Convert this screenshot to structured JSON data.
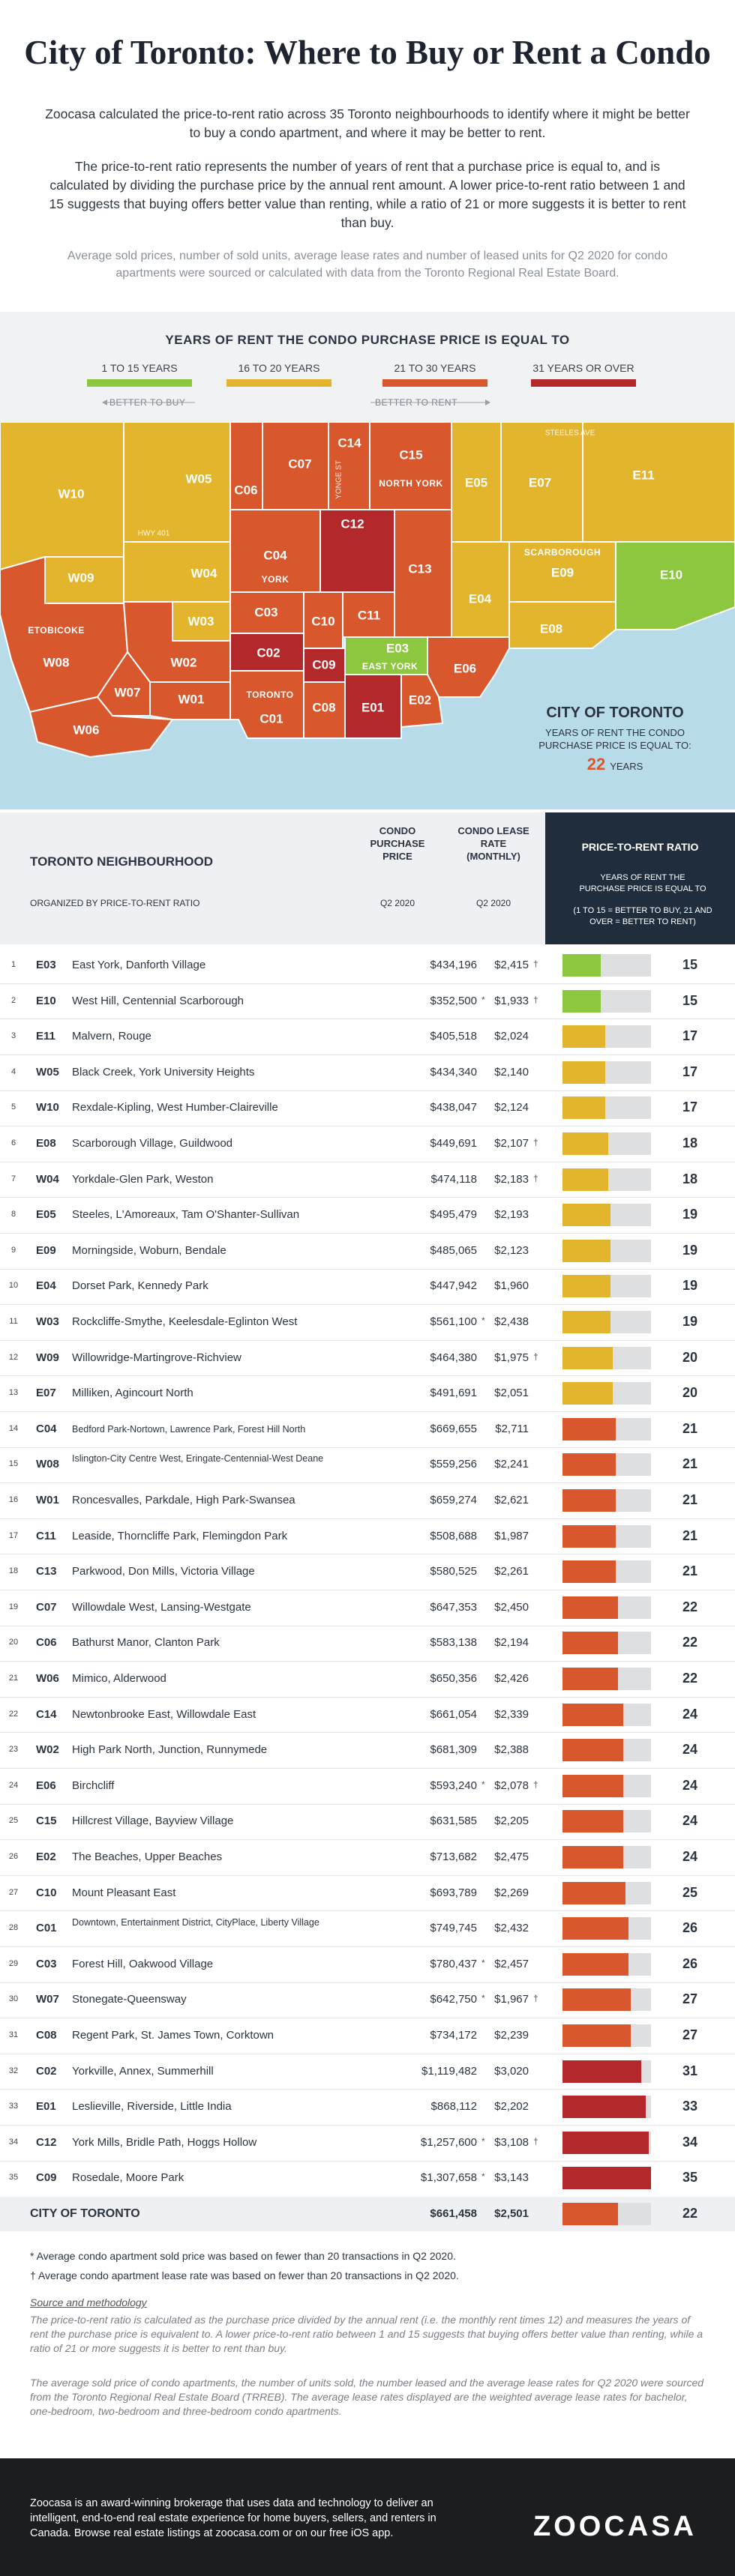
{
  "title": "City of Toronto: Where to Buy or Rent a Condo",
  "intro": [
    "Zoocasa calculated the price-to-rent ratio across 35 Toronto neighbourhoods to identify where it might be better to buy a condo apartment, and where it may be better to rent.",
    "The price-to-rent ratio represents the number of years of rent that a purchase price is equal to, and is calculated by dividing the purchase price by the annual rent amount. A lower price-to-rent ratio between 1 and 15 suggests that buying offers better value than renting, while a ratio of 21 or more suggests it is better to rent than buy."
  ],
  "note": "Average sold prices, number of sold units, average lease rates and number of leased units for Q2 2020 for condo apartments were sourced or calculated with data from the Toronto Regional Real Estate Board.",
  "legend": {
    "title": "YEARS OF RENT THE CONDO PURCHASE PRICE IS EQUAL TO",
    "items": [
      {
        "label": "1 TO 15 YEARS",
        "color": "#8dc63f"
      },
      {
        "label": "16 TO 20 YEARS",
        "color": "#e2b52c"
      },
      {
        "label": "21 TO 30 YEARS",
        "color": "#d9572c"
      },
      {
        "label": "31 YEARS OR OVER",
        "color": "#b3292b"
      }
    ],
    "buy": "BETTER TO BUY",
    "rent": "BETTER TO RENT"
  },
  "map": {
    "regions": [
      {
        "code": "W10"
      },
      {
        "code": "W05"
      },
      {
        "code": "C06"
      },
      {
        "code": "C07"
      },
      {
        "code": "C14"
      },
      {
        "code": "C15"
      },
      {
        "code": "E05"
      },
      {
        "code": "E07"
      },
      {
        "code": "E11"
      },
      {
        "code": "W09"
      },
      {
        "code": "W04"
      },
      {
        "code": "C04"
      },
      {
        "code": "C12"
      },
      {
        "code": "C13"
      },
      {
        "code": "E04"
      },
      {
        "code": "E09"
      },
      {
        "code": "E10"
      },
      {
        "code": "E08"
      },
      {
        "code": "W08"
      },
      {
        "code": "W03"
      },
      {
        "code": "C03"
      },
      {
        "code": "C10"
      },
      {
        "code": "C11"
      },
      {
        "code": "W02"
      },
      {
        "code": "C02"
      },
      {
        "code": "C09"
      },
      {
        "code": "E03"
      },
      {
        "code": "E06"
      },
      {
        "code": "C08"
      },
      {
        "code": "E01"
      },
      {
        "code": "E02"
      },
      {
        "code": "C01"
      },
      {
        "code": "W01"
      },
      {
        "code": "W07"
      },
      {
        "code": "W06"
      }
    ],
    "areas": [
      "NORTH YORK",
      "YORK",
      "SCARBOROUGH",
      "ETOBICOKE",
      "EAST YORK",
      "TORONTO"
    ],
    "roads": [
      "HWY 401",
      "YONGE ST",
      "STEELES AVE"
    ],
    "box": {
      "title": "CITY OF TORONTO",
      "text": "YEARS OF RENT THE CONDO PURCHASE PRICE IS EQUAL TO:",
      "value": 22,
      "unit": "YEARS"
    }
  },
  "table": {
    "headers": {
      "neighbourhood": "TORONTO NEIGHBOURHOOD",
      "organized": "ORGANIZED BY PRICE-TO-RENT RATIO",
      "price": "CONDO PURCHASE PRICE",
      "price_period": "Q2 2020",
      "lease": "CONDO LEASE RATE (MONTHLY)",
      "lease_period": "Q2 2020",
      "ratio": "PRICE-TO-RENT RATIO",
      "ratio_sub": "YEARS OF RENT THE PURCHASE PRICE IS EQUAL TO",
      "ratio_note": "(1 TO 15 = BETTER TO BUY, 21 AND OVER = BETTER TO RENT)"
    },
    "rows": [
      {
        "rank": 1,
        "code": "E03",
        "name": "East York, Danforth Village",
        "price": "$434,196",
        "lease": "$2,415",
        "lease_note": "†",
        "ratio": 15,
        "color": "#8dc63f"
      },
      {
        "rank": 2,
        "code": "E10",
        "name": "West Hill, Centennial Scarborough",
        "price": "$352,500",
        "price_note": "*",
        "lease": "$1,933",
        "lease_note": "†",
        "ratio": 15,
        "color": "#8dc63f"
      },
      {
        "rank": 3,
        "code": "E11",
        "name": "Malvern, Rouge",
        "price": "$405,518",
        "lease": "$2,024",
        "ratio": 17,
        "color": "#e2b52c"
      },
      {
        "rank": 4,
        "code": "W05",
        "name": "Black Creek, York University Heights",
        "price": "$434,340",
        "lease": "$2,140",
        "ratio": 17,
        "color": "#e2b52c"
      },
      {
        "rank": 5,
        "code": "W10",
        "name": "Rexdale-Kipling, West Humber-Claireville",
        "price": "$438,047",
        "lease": "$2,124",
        "ratio": 17,
        "color": "#e2b52c"
      },
      {
        "rank": 6,
        "code": "E08",
        "name": "Scarborough Village, Guildwood",
        "price": "$449,691",
        "lease": "$2,107",
        "lease_note": "†",
        "ratio": 18,
        "color": "#e2b52c"
      },
      {
        "rank": 7,
        "code": "W04",
        "name": "Yorkdale-Glen Park, Weston",
        "price": "$474,118",
        "lease": "$2,183",
        "lease_note": "†",
        "ratio": 18,
        "color": "#e2b52c"
      },
      {
        "rank": 8,
        "code": "E05",
        "name": "Steeles, L'Amoreaux, Tam O'Shanter-Sullivan",
        "price": "$495,479",
        "lease": "$2,193",
        "ratio": 19,
        "color": "#e2b52c"
      },
      {
        "rank": 9,
        "code": "E09",
        "name": "Morningside, Woburn, Bendale",
        "price": "$485,065",
        "lease": "$2,123",
        "ratio": 19,
        "color": "#e2b52c"
      },
      {
        "rank": 10,
        "code": "E04",
        "name": "Dorset Park, Kennedy Park",
        "price": "$447,942",
        "lease": "$1,960",
        "ratio": 19,
        "color": "#e2b52c"
      },
      {
        "rank": 11,
        "code": "W03",
        "name": "Rockcliffe-Smythe, Keelesdale-Eglinton West",
        "price": "$561,100",
        "price_note": "*",
        "lease": "$2,438",
        "ratio": 19,
        "color": "#e2b52c"
      },
      {
        "rank": 12,
        "code": "W09",
        "name": "Willowridge-Martingrove-Richview",
        "price": "$464,380",
        "lease": "$1,975",
        "lease_note": "†",
        "ratio": 20,
        "color": "#e2b52c"
      },
      {
        "rank": 13,
        "code": "E07",
        "name": "Milliken, Agincourt North",
        "price": "$491,691",
        "lease": "$2,051",
        "ratio": 20,
        "color": "#e2b52c"
      },
      {
        "rank": 14,
        "code": "C04",
        "name": "Bedford Park-Nortown, Lawrence Park, Forest Hill North",
        "price": "$669,655",
        "lease": "$2,711",
        "ratio": 21,
        "color": "#d9572c"
      },
      {
        "rank": 15,
        "code": "W08",
        "name": "Islington-City Centre West, Eringate-Centennial-West Deane",
        "price": "$559,256",
        "lease": "$2,241",
        "ratio": 21,
        "color": "#d9572c"
      },
      {
        "rank": 16,
        "code": "W01",
        "name": "Roncesvalles, Parkdale, High Park-Swansea",
        "price": "$659,274",
        "lease": "$2,621",
        "ratio": 21,
        "color": "#d9572c"
      },
      {
        "rank": 17,
        "code": "C11",
        "name": "Leaside, Thorncliffe Park, Flemingdon Park",
        "price": "$508,688",
        "lease": "$1,987",
        "ratio": 21,
        "color": "#d9572c"
      },
      {
        "rank": 18,
        "code": "C13",
        "name": "Parkwood, Don Mills, Victoria Village",
        "price": "$580,525",
        "lease": "$2,261",
        "ratio": 21,
        "color": "#d9572c"
      },
      {
        "rank": 19,
        "code": "C07",
        "name": "Willowdale West, Lansing-Westgate",
        "price": "$647,353",
        "lease": "$2,450",
        "ratio": 22,
        "color": "#d9572c"
      },
      {
        "rank": 20,
        "code": "C06",
        "name": "Bathurst Manor, Clanton Park",
        "price": "$583,138",
        "lease": "$2,194",
        "ratio": 22,
        "color": "#d9572c"
      },
      {
        "rank": 21,
        "code": "W06",
        "name": "Mimico, Alderwood",
        "price": "$650,356",
        "lease": "$2,426",
        "ratio": 22,
        "color": "#d9572c"
      },
      {
        "rank": 22,
        "code": "C14",
        "name": "Newtonbrooke East, Willowdale East",
        "price": "$661,054",
        "lease": "$2,339",
        "ratio": 24,
        "color": "#d9572c"
      },
      {
        "rank": 23,
        "code": "W02",
        "name": "High Park North, Junction, Runnymede",
        "price": "$681,309",
        "lease": "$2,388",
        "ratio": 24,
        "color": "#d9572c"
      },
      {
        "rank": 24,
        "code": "E06",
        "name": "Birchcliff",
        "price": "$593,240",
        "price_note": "*",
        "lease": "$2,078",
        "lease_note": "†",
        "ratio": 24,
        "color": "#d9572c"
      },
      {
        "rank": 25,
        "code": "C15",
        "name": "Hillcrest Village, Bayview Village",
        "price": "$631,585",
        "lease": "$2,205",
        "ratio": 24,
        "color": "#d9572c"
      },
      {
        "rank": 26,
        "code": "E02",
        "name": "The Beaches, Upper Beaches",
        "price": "$713,682",
        "lease": "$2,475",
        "ratio": 24,
        "color": "#d9572c"
      },
      {
        "rank": 27,
        "code": "C10",
        "name": "Mount Pleasant East",
        "price": "$693,789",
        "lease": "$2,269",
        "ratio": 25,
        "color": "#d9572c"
      },
      {
        "rank": 28,
        "code": "C01",
        "name": "Downtown, Entertainment District, CityPlace, Liberty Village",
        "price": "$749,745",
        "lease": "$2,432",
        "ratio": 26,
        "color": "#d9572c"
      },
      {
        "rank": 29,
        "code": "C03",
        "name": "Forest Hill, Oakwood Village",
        "price": "$780,437",
        "price_note": "*",
        "lease": "$2,457",
        "ratio": 26,
        "color": "#d9572c"
      },
      {
        "rank": 30,
        "code": "W07",
        "name": "Stonegate-Queensway",
        "price": "$642,750",
        "price_note": "*",
        "lease": "$1,967",
        "lease_note": "†",
        "ratio": 27,
        "color": "#d9572c"
      },
      {
        "rank": 31,
        "code": "C08",
        "name": "Regent Park, St. James Town, Corktown",
        "price": "$734,172",
        "lease": "$2,239",
        "ratio": 27,
        "color": "#d9572c"
      },
      {
        "rank": 32,
        "code": "C02",
        "name": "Yorkville, Annex, Summerhill",
        "price": "$1,119,482",
        "lease": "$3,020",
        "ratio": 31,
        "color": "#b3292b"
      },
      {
        "rank": 33,
        "code": "E01",
        "name": "Leslieville, Riverside, Little India",
        "price": "$868,112",
        "lease": "$2,202",
        "ratio": 33,
        "color": "#b3292b"
      },
      {
        "rank": 34,
        "code": "C12",
        "name": "York Mills, Bridle Path, Hoggs Hollow",
        "price": "$1,257,600",
        "price_note": "*",
        "lease": "$3,108",
        "lease_note": "†",
        "ratio": 34,
        "color": "#b3292b"
      },
      {
        "rank": 35,
        "code": "C09",
        "name": "Rosedale, Moore Park",
        "price": "$1,307,658",
        "price_note": "*",
        "lease": "$3,143",
        "ratio": 35,
        "color": "#b3292b"
      }
    ],
    "total": {
      "label": "CITY OF TORONTO",
      "price": "$661,458",
      "lease": "$2,501",
      "ratio": 22,
      "color": "#d9572c"
    }
  },
  "footnotes": [
    "* Average condo apartment sold price was based on fewer than 20 transactions in Q2 2020.",
    "† Average condo apartment lease rate was based on fewer than 20 transactions in Q2 2020."
  ],
  "source": {
    "heading": "Source and methodology",
    "paragraphs": [
      "The price-to-rent ratio is calculated as the purchase price divided by the annual rent (i.e. the monthly rent times 12) and measures the years of rent the purchase price is equivalent to. A lower price-to-rent ratio between 1 and 15 suggests that buying offers better value than renting, while a ratio of 21 or more suggests it is better to rent than buy.",
      "The average sold price of condo apartments, the number of units sold, the number leased and the average lease rates for Q2 2020 were sourced from the Toronto Regional Real Estate Board (TRREB). The average lease rates displayed are the weighted average lease rates for bachelor, one-bedroom, two-bedroom and three-bedroom condo apartments."
    ]
  },
  "footer": {
    "text": "Zoocasa is an award-winning brokerage that uses data and technology to deliver an intelligent, end-to-end real estate experience for home buyers, sellers, and renters in Canada. Browse real estate listings at zoocasa.com or on our free iOS app.",
    "logo": "ZOOCASA"
  }
}
